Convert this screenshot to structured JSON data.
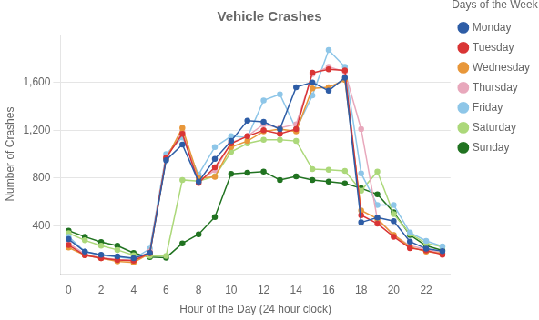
{
  "chart_data": {
    "type": "line",
    "title": "Vehicle Crashes",
    "xlabel": "Hour of the Day (24 hour clock)",
    "ylabel": "Number of Crashes",
    "legend_title": "Days of the Week",
    "x": [
      0,
      1,
      2,
      3,
      4,
      5,
      6,
      7,
      8,
      9,
      10,
      11,
      12,
      13,
      14,
      15,
      16,
      17,
      18,
      19,
      20,
      21,
      22,
      23
    ],
    "series": [
      {
        "name": "Monday",
        "color": "#2e5da6",
        "values": [
          290,
          185,
          160,
          145,
          130,
          175,
          950,
          1080,
          770,
          960,
          1110,
          1280,
          1270,
          1210,
          1560,
          1600,
          1530,
          1640,
          430,
          470,
          440,
          270,
          210,
          190
        ]
      },
      {
        "name": "Tuesday",
        "color": "#d93535",
        "values": [
          240,
          155,
          130,
          115,
          110,
          175,
          970,
          1170,
          760,
          890,
          1090,
          1150,
          1200,
          1170,
          1210,
          1680,
          1710,
          1700,
          490,
          420,
          310,
          215,
          195,
          160
        ]
      },
      {
        "name": "Wednesday",
        "color": "#e8973a",
        "values": [
          220,
          155,
          130,
          105,
          95,
          170,
          960,
          1220,
          800,
          810,
          1060,
          1110,
          1190,
          1210,
          1190,
          1550,
          1560,
          1620,
          530,
          460,
          325,
          225,
          185,
          170
        ]
      },
      {
        "name": "Thursday",
        "color": "#e8a8bc",
        "values": [
          255,
          165,
          135,
          120,
          115,
          185,
          975,
          1185,
          775,
          865,
          1095,
          1150,
          1250,
          1220,
          1250,
          1670,
          1730,
          1690,
          1210,
          455,
          325,
          235,
          205,
          175
        ]
      },
      {
        "name": "Friday",
        "color": "#8ec6e8",
        "values": [
          310,
          185,
          155,
          140,
          125,
          210,
          1000,
          1140,
          830,
          1060,
          1150,
          1140,
          1450,
          1500,
          1210,
          1490,
          1870,
          1730,
          840,
          575,
          575,
          345,
          275,
          230
        ]
      },
      {
        "name": "Saturday",
        "color": "#acd87a",
        "values": [
          340,
          280,
          235,
          200,
          155,
          150,
          150,
          785,
          775,
          815,
          1020,
          1090,
          1120,
          1120,
          1110,
          875,
          870,
          860,
          695,
          855,
          500,
          335,
          255,
          225
        ]
      },
      {
        "name": "Sunday",
        "color": "#217321",
        "values": [
          360,
          310,
          265,
          235,
          175,
          140,
          135,
          255,
          330,
          475,
          835,
          845,
          855,
          785,
          815,
          785,
          770,
          755,
          715,
          665,
          515,
          325,
          235,
          195
        ]
      }
    ],
    "marker": "circle",
    "xlim": [
      -0.5,
      23.5
    ],
    "xticks": [
      0,
      2,
      4,
      6,
      8,
      10,
      12,
      14,
      16,
      18,
      20,
      22
    ],
    "ylim": [
      0,
      2000
    ],
    "yticks": [
      400,
      800,
      {
        "value": 1200,
        "label": "1,200"
      },
      {
        "value": 1600,
        "label": "1,600"
      }
    ],
    "grid": "y",
    "legend": "right"
  }
}
